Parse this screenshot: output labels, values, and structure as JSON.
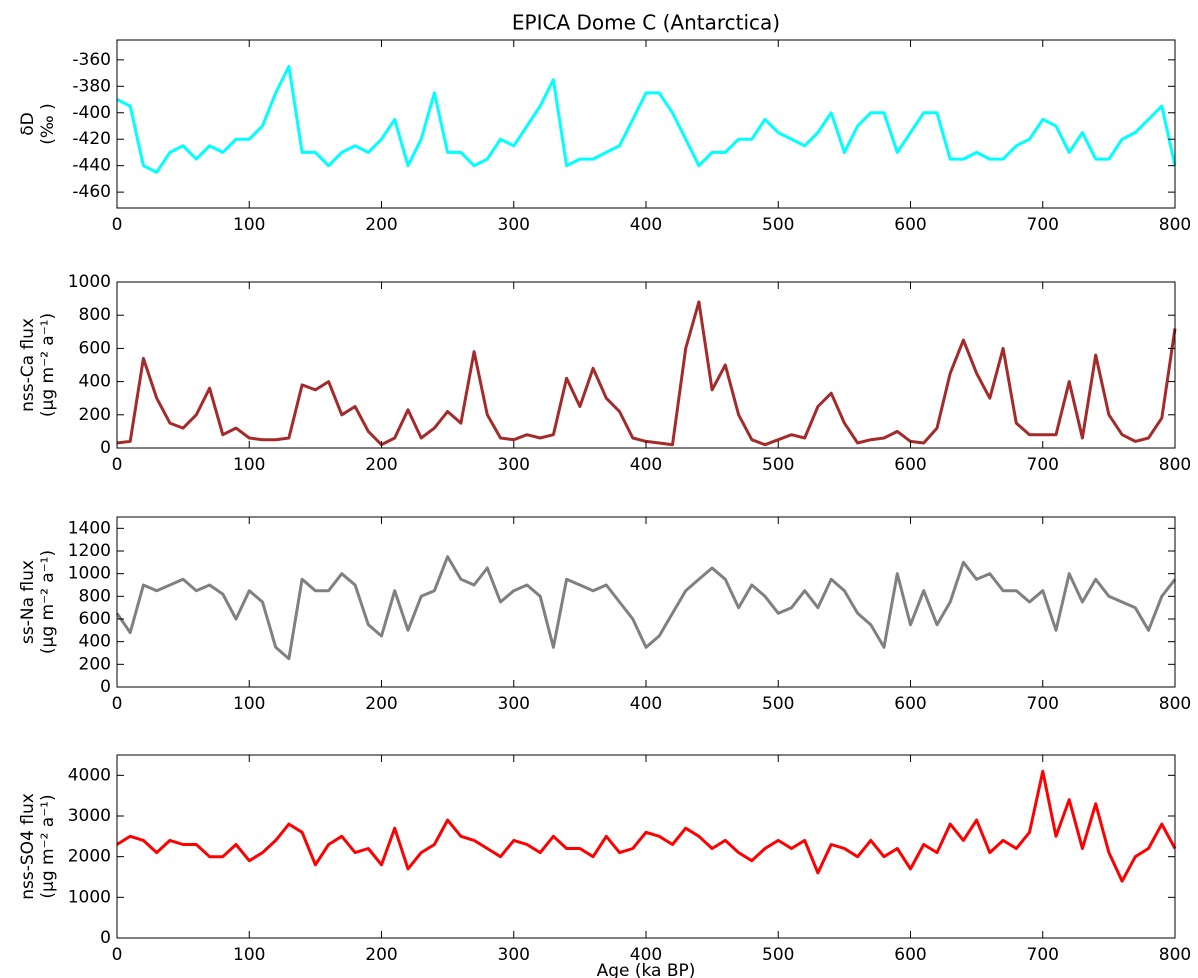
{
  "chart_data": [
    {
      "type": "line",
      "title": "EPICA Dome C (Antarctica)",
      "ylabel": [
        "δD",
        "(‰ )"
      ],
      "color": "#00ffff",
      "x": [
        0,
        10,
        20,
        30,
        40,
        50,
        60,
        70,
        80,
        90,
        100,
        110,
        120,
        130,
        140,
        150,
        160,
        170,
        180,
        190,
        200,
        210,
        220,
        230,
        240,
        250,
        260,
        270,
        280,
        290,
        300,
        310,
        320,
        330,
        340,
        350,
        360,
        370,
        380,
        390,
        400,
        410,
        420,
        430,
        440,
        450,
        460,
        470,
        480,
        490,
        500,
        510,
        520,
        530,
        540,
        550,
        560,
        570,
        580,
        590,
        600,
        610,
        620,
        630,
        640,
        650,
        660,
        670,
        680,
        690,
        700,
        710,
        720,
        730,
        740,
        750,
        760,
        770,
        780,
        790,
        800
      ],
      "values": [
        -390,
        -395,
        -440,
        -445,
        -430,
        -425,
        -435,
        -425,
        -430,
        -420,
        -420,
        -410,
        -385,
        -365,
        -430,
        -430,
        -440,
        -430,
        -425,
        -430,
        -420,
        -405,
        -440,
        -420,
        -385,
        -430,
        -430,
        -440,
        -435,
        -420,
        -425,
        -410,
        -395,
        -375,
        -440,
        -435,
        -435,
        -430,
        -425,
        -405,
        -385,
        -385,
        -400,
        -420,
        -440,
        -430,
        -430,
        -420,
        -420,
        -405,
        -415,
        -420,
        -425,
        -415,
        -400,
        -430,
        -410,
        -400,
        -400,
        -430,
        -415,
        -400,
        -400,
        -435,
        -435,
        -430,
        -435,
        -435,
        -425,
        -420,
        -405,
        -410,
        -430,
        -415,
        -435,
        -435,
        -420,
        -415,
        -405,
        -395,
        -440
      ],
      "xlim": [
        0,
        800
      ],
      "xticks": [
        0,
        100,
        200,
        300,
        400,
        500,
        600,
        700,
        800
      ],
      "ylim": [
        -472,
        -345
      ],
      "yticks": [
        -460,
        -440,
        -420,
        -400,
        -380,
        -360
      ]
    },
    {
      "type": "line",
      "ylabel": [
        "nss-Ca flux",
        "(μg m⁻² a⁻¹)"
      ],
      "color": "#a52a2a",
      "x": [
        0,
        10,
        20,
        30,
        40,
        50,
        60,
        70,
        80,
        90,
        100,
        110,
        120,
        130,
        140,
        150,
        160,
        170,
        180,
        190,
        200,
        210,
        220,
        230,
        240,
        250,
        260,
        270,
        280,
        290,
        300,
        310,
        320,
        330,
        340,
        350,
        360,
        370,
        380,
        390,
        400,
        410,
        420,
        430,
        440,
        450,
        460,
        470,
        480,
        490,
        500,
        510,
        520,
        530,
        540,
        550,
        560,
        570,
        580,
        590,
        600,
        610,
        620,
        630,
        640,
        650,
        660,
        670,
        680,
        690,
        700,
        710,
        720,
        730,
        740,
        750,
        760,
        770,
        780,
        790,
        800
      ],
      "values": [
        30,
        40,
        540,
        300,
        150,
        120,
        200,
        360,
        80,
        120,
        60,
        50,
        50,
        60,
        380,
        350,
        400,
        200,
        250,
        100,
        20,
        60,
        230,
        60,
        120,
        220,
        150,
        580,
        200,
        60,
        50,
        80,
        60,
        80,
        420,
        250,
        480,
        300,
        220,
        60,
        40,
        30,
        20,
        600,
        880,
        350,
        500,
        200,
        50,
        20,
        50,
        80,
        60,
        250,
        330,
        150,
        30,
        50,
        60,
        100,
        40,
        30,
        120,
        450,
        650,
        450,
        300,
        600,
        150,
        80,
        80,
        80,
        400,
        60,
        560,
        200,
        80,
        40,
        60,
        180,
        720
      ],
      "xlim": [
        0,
        800
      ],
      "xticks": [
        0,
        100,
        200,
        300,
        400,
        500,
        600,
        700,
        800
      ],
      "ylim": [
        0,
        1000
      ],
      "yticks": [
        0,
        200,
        400,
        600,
        800,
        1000
      ]
    },
    {
      "type": "line",
      "ylabel": [
        "ss-Na flux",
        "(μg m⁻² a⁻¹)"
      ],
      "color": "#808080",
      "x": [
        0,
        10,
        20,
        30,
        40,
        50,
        60,
        70,
        80,
        90,
        100,
        110,
        120,
        130,
        140,
        150,
        160,
        170,
        180,
        190,
        200,
        210,
        220,
        230,
        240,
        250,
        260,
        270,
        280,
        290,
        300,
        310,
        320,
        330,
        340,
        350,
        360,
        370,
        380,
        390,
        400,
        410,
        420,
        430,
        440,
        450,
        460,
        470,
        480,
        490,
        500,
        510,
        520,
        530,
        540,
        550,
        560,
        570,
        580,
        590,
        600,
        610,
        620,
        630,
        640,
        650,
        660,
        670,
        680,
        690,
        700,
        710,
        720,
        730,
        740,
        750,
        760,
        770,
        780,
        790,
        800
      ],
      "values": [
        650,
        480,
        900,
        850,
        900,
        950,
        850,
        900,
        820,
        600,
        850,
        750,
        350,
        250,
        950,
        850,
        850,
        1000,
        900,
        550,
        450,
        850,
        500,
        800,
        850,
        1150,
        950,
        900,
        1050,
        750,
        850,
        900,
        800,
        350,
        950,
        900,
        850,
        900,
        750,
        600,
        350,
        450,
        650,
        850,
        950,
        1050,
        950,
        700,
        900,
        800,
        650,
        700,
        850,
        700,
        950,
        850,
        650,
        550,
        350,
        1000,
        550,
        850,
        550,
        750,
        1100,
        950,
        1000,
        850,
        850,
        750,
        850,
        500,
        1000,
        750,
        950,
        800,
        750,
        700,
        500,
        800,
        950
      ],
      "xlim": [
        0,
        800
      ],
      "xticks": [
        0,
        100,
        200,
        300,
        400,
        500,
        600,
        700,
        800
      ],
      "ylim": [
        0,
        1500
      ],
      "yticks": [
        0,
        200,
        400,
        600,
        800,
        1000,
        1200,
        1400
      ]
    },
    {
      "type": "line",
      "ylabel": [
        "nss-SO4 flux",
        "(μg m⁻² a⁻¹)"
      ],
      "xlabel": "Age (ka BP)",
      "color": "#ff0000",
      "x": [
        0,
        10,
        20,
        30,
        40,
        50,
        60,
        70,
        80,
        90,
        100,
        110,
        120,
        130,
        140,
        150,
        160,
        170,
        180,
        190,
        200,
        210,
        220,
        230,
        240,
        250,
        260,
        270,
        280,
        290,
        300,
        310,
        320,
        330,
        340,
        350,
        360,
        370,
        380,
        390,
        400,
        410,
        420,
        430,
        440,
        450,
        460,
        470,
        480,
        490,
        500,
        510,
        520,
        530,
        540,
        550,
        560,
        570,
        580,
        590,
        600,
        610,
        620,
        630,
        640,
        650,
        660,
        670,
        680,
        690,
        700,
        710,
        720,
        730,
        740,
        750,
        760,
        770,
        780,
        790,
        800
      ],
      "values": [
        2300,
        2500,
        2400,
        2100,
        2400,
        2300,
        2300,
        2000,
        2000,
        2300,
        1900,
        2100,
        2400,
        2800,
        2600,
        1800,
        2300,
        2500,
        2100,
        2200,
        1800,
        2700,
        1700,
        2100,
        2300,
        2900,
        2500,
        2400,
        2200,
        2000,
        2400,
        2300,
        2100,
        2500,
        2200,
        2200,
        2000,
        2500,
        2100,
        2200,
        2600,
        2500,
        2300,
        2700,
        2500,
        2200,
        2400,
        2100,
        1900,
        2200,
        2400,
        2200,
        2400,
        1600,
        2300,
        2200,
        2000,
        2400,
        2000,
        2200,
        1700,
        2300,
        2100,
        2800,
        2400,
        2900,
        2100,
        2400,
        2200,
        2600,
        4100,
        2500,
        3400,
        2200,
        3300,
        2100,
        1400,
        2000,
        2200,
        2800,
        2200
      ],
      "xlim": [
        0,
        800
      ],
      "xticks": [
        0,
        100,
        200,
        300,
        400,
        500,
        600,
        700,
        800
      ],
      "ylim": [
        0,
        4500
      ],
      "yticks": [
        0,
        1000,
        2000,
        3000,
        4000
      ]
    }
  ]
}
